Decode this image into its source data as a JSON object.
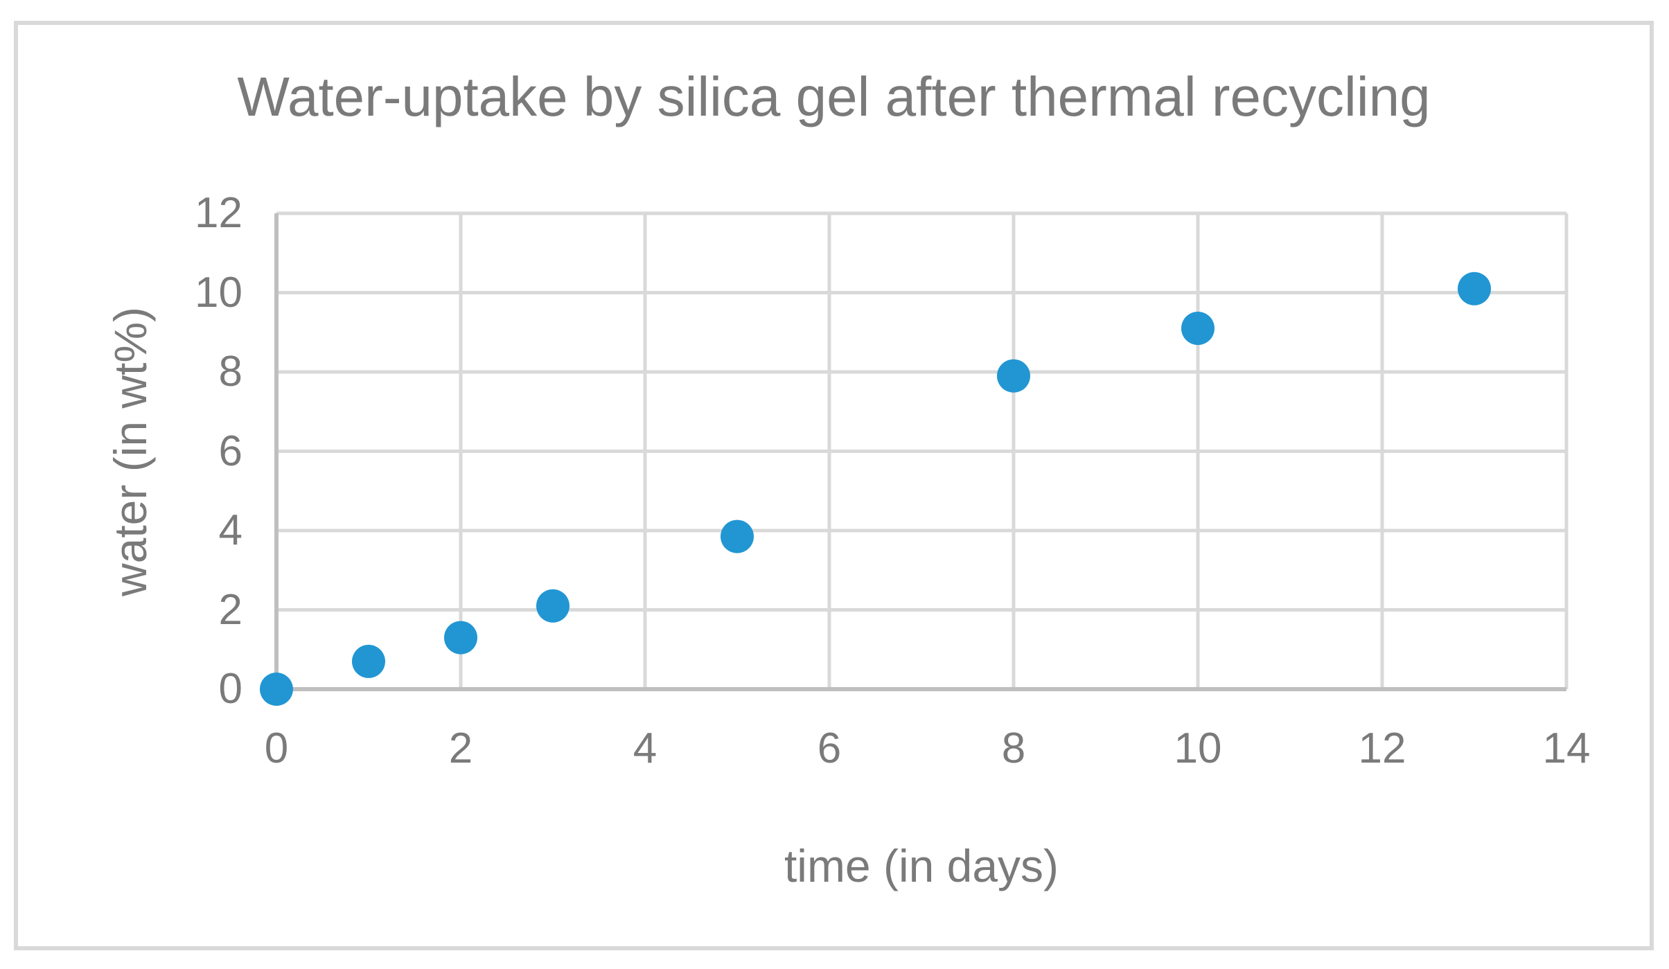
{
  "chart_data": {
    "type": "scatter",
    "title": "Water-uptake by silica gel after thermal recycling",
    "xlabel": "time (in days)",
    "ylabel": "water (in wt%)",
    "xlim": [
      0,
      14
    ],
    "ylim": [
      0,
      12
    ],
    "xticks": [
      0,
      2,
      4,
      6,
      8,
      10,
      12,
      14
    ],
    "yticks": [
      0,
      2,
      4,
      6,
      8,
      10,
      12
    ],
    "grid": true,
    "legend": false,
    "series": [
      {
        "marker": "circle",
        "marker_color": "#2196d3",
        "points": [
          [
            0,
            0.0
          ],
          [
            1,
            0.7
          ],
          [
            2,
            1.3
          ],
          [
            3,
            2.1
          ],
          [
            5,
            3.85
          ],
          [
            8,
            7.9
          ],
          [
            10,
            9.1
          ],
          [
            13,
            10.1
          ]
        ]
      }
    ],
    "colors": {
      "text": "#7a7a7a",
      "gridline": "#d9d9d9",
      "axis_line": "#bfbfbf",
      "figure_border": "#d9d9d9",
      "background": "#ffffff"
    }
  }
}
